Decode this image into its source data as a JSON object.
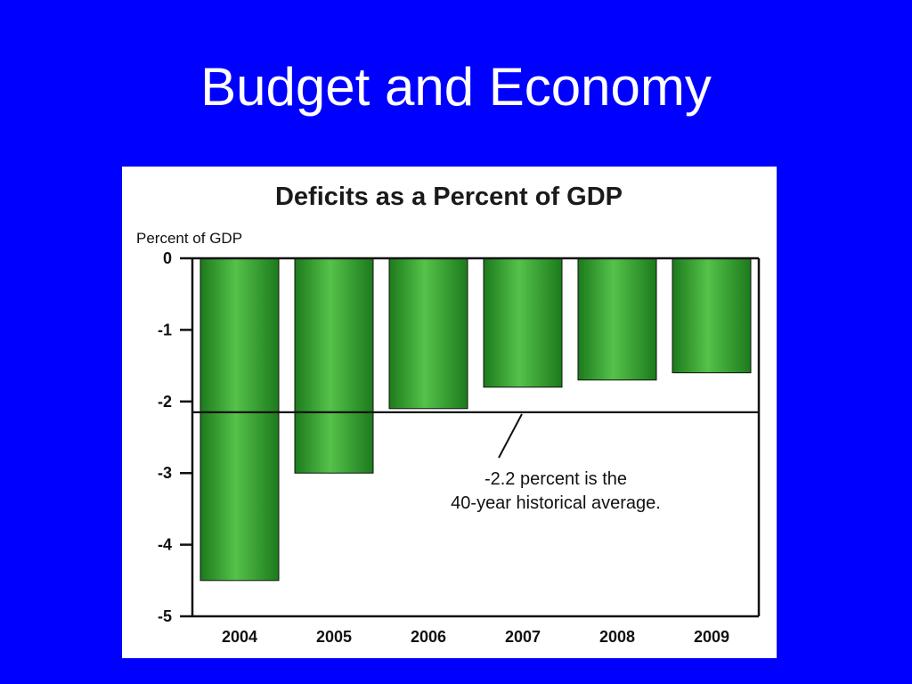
{
  "slide": {
    "title": "Budget and Economy"
  },
  "colors": {
    "background": "#0000ff",
    "bar": "#2e9e2e",
    "bar_light": "#55c24a",
    "bar_dark": "#1c7a1c"
  },
  "chart_data": {
    "type": "bar",
    "title": "Deficits as a Percent of GDP",
    "xlabel": "",
    "ylabel": "Percent of GDP",
    "categories": [
      "2004",
      "2005",
      "2006",
      "2007",
      "2008",
      "2009"
    ],
    "values": [
      -4.5,
      -3.0,
      -2.1,
      -1.8,
      -1.7,
      -1.6
    ],
    "ylim": [
      -5,
      0
    ],
    "yticks": [
      0,
      -1,
      -2,
      -3,
      -4,
      -5
    ],
    "ytick_labels": [
      "0",
      "-1",
      "-2",
      "-3",
      "-4",
      "-5"
    ],
    "grid": false,
    "reference_line": {
      "value": -2.2
    },
    "annotation": {
      "lines": [
        "-2.2 percent is the",
        "40-year historical average."
      ]
    }
  }
}
